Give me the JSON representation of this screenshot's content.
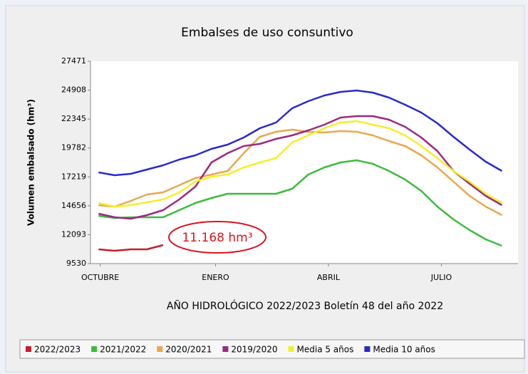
{
  "chart_data": {
    "type": "line",
    "title": "Embalses de uso consuntivo",
    "x_label": "AÑO HIDROLÓGICO 2022/2023 Boletín 48 del año 2022",
    "y_label": "Volumen embalsado (hm³)",
    "annotation": "11.168 hm³",
    "x": [
      0,
      2,
      4,
      6,
      8,
      10,
      12,
      14,
      16,
      18,
      20,
      22,
      24,
      26,
      28,
      30,
      32,
      34,
      36,
      38,
      40,
      42,
      44,
      46,
      48,
      50
    ],
    "xlim": [
      -1,
      52
    ],
    "xticks": [
      {
        "value": 0.2,
        "label": "OCTUBRE"
      },
      {
        "value": 14.5,
        "label": "ENERO"
      },
      {
        "value": 28.5,
        "label": "ABRIL"
      },
      {
        "value": 42.5,
        "label": "JULIO"
      }
    ],
    "ylim": [
      9530,
      27471
    ],
    "yticks": [
      9530,
      12093,
      14656,
      17219,
      19782,
      22345,
      24908,
      27471
    ],
    "legend": "bottom",
    "series": [
      {
        "name": "2022/2023",
        "color": "#c0202a",
        "values": [
          10793,
          10667,
          10793,
          10793,
          11172,
          null,
          null,
          null,
          null,
          null,
          null,
          null,
          null,
          null,
          null,
          null,
          null,
          null,
          null,
          null,
          null,
          null,
          null,
          null,
          null,
          null
        ]
      },
      {
        "name": "2021/2022",
        "color": "#3dbb3d",
        "values": [
          13762,
          13573,
          13636,
          13636,
          13636,
          14268,
          14900,
          15342,
          15721,
          15721,
          15721,
          15721,
          16163,
          17426,
          18058,
          18500,
          18690,
          18374,
          17742,
          16984,
          15973,
          14584,
          13447,
          12499,
          11678,
          11109
        ]
      },
      {
        "name": "2020/2021",
        "color": "#e8a850",
        "values": [
          14710,
          14584,
          15089,
          15658,
          15847,
          16479,
          17110,
          17426,
          17742,
          19321,
          20774,
          21216,
          21406,
          21216,
          21153,
          21279,
          21216,
          20901,
          20395,
          19953,
          19132,
          18058,
          16795,
          15531,
          14584,
          13826
        ]
      },
      {
        "name": "2019/2020",
        "color": "#9a2a80",
        "values": [
          13952,
          13636,
          13510,
          13826,
          14268,
          15215,
          16352,
          18500,
          19321,
          19953,
          20143,
          20585,
          20901,
          21343,
          21848,
          22480,
          22606,
          22606,
          22290,
          21658,
          20711,
          19511,
          17742,
          16605,
          15531,
          14710
        ]
      },
      {
        "name": "Media 5 años",
        "color": "#f2f02a",
        "values": [
          14900,
          14584,
          14710,
          14963,
          15215,
          15847,
          16795,
          17237,
          17426,
          18058,
          18500,
          18879,
          20269,
          20901,
          21532,
          22038,
          22164,
          21848,
          21532,
          20901,
          19953,
          18879,
          17742,
          16795,
          15720,
          14900
        ]
      },
      {
        "name": "Media 10 años",
        "color": "#2a2ac8",
        "values": [
          17616,
          17363,
          17490,
          17869,
          18248,
          18753,
          19132,
          19700,
          20080,
          20711,
          21532,
          22038,
          23301,
          23933,
          24438,
          24754,
          24880,
          24691,
          24249,
          23617,
          22922,
          21974,
          20774,
          19637,
          18563,
          17742
        ]
      }
    ]
  }
}
